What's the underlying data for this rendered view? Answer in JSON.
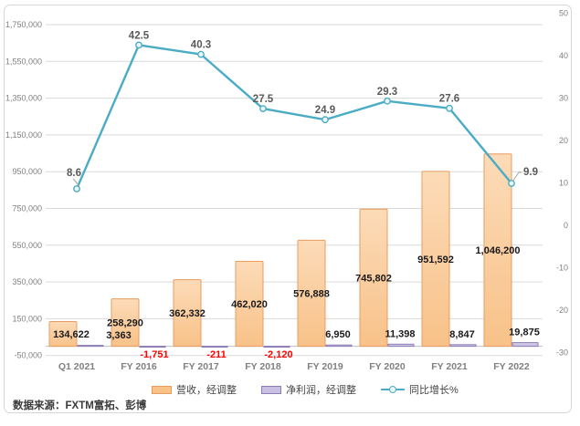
{
  "source_note": "数据来源：FXTM富拓、彭博",
  "legend": {
    "items": [
      {
        "label": "营收，经调整",
        "type": "bar"
      },
      {
        "label": "净利润，经调整",
        "type": "bar"
      },
      {
        "label": "同比增长%",
        "type": "line"
      }
    ]
  },
  "colors": {
    "revenue_fill_top": "#fcdbb8",
    "revenue_fill_bottom": "#f8c289",
    "revenue_border": "#e89c5d",
    "net_fill_top": "#d5cce8",
    "net_fill_bottom": "#c9bfe0",
    "net_border": "#8c7db8",
    "line": "#4bacc6",
    "marker_fill": "#eaf6fa",
    "label_dark": "#1a1a1a",
    "label_gray": "#595959",
    "label_negative": "#ff0000",
    "axis_text": "#808080",
    "gridline": "#dadada",
    "baseline": "#bfbfbf",
    "leader": "#a6a6a6"
  },
  "chart_data": {
    "type": "combo",
    "title": "",
    "categories": [
      "Q1 2021",
      "FY 2016",
      "FY 2017",
      "FY 2018",
      "FY 2019",
      "FY 2020",
      "FY 2021",
      "FY 2022"
    ],
    "series": [
      {
        "name": "营收，经调整",
        "type": "bar",
        "axis": "left",
        "values": [
          134622,
          258290,
          362332,
          462020,
          576888,
          745802,
          951592,
          1046200
        ],
        "labels": [
          "134,622",
          "258,290",
          "362,332",
          "462,020",
          "576,888",
          "745,802",
          "951,592",
          "1,046,200"
        ]
      },
      {
        "name": "净利润，经调整",
        "type": "bar",
        "axis": "left",
        "values": [
          3363,
          -1751,
          -211,
          -2120,
          6950,
          11398,
          8847,
          19875
        ],
        "labels": [
          "3,363",
          "-1,751",
          "-211",
          "-2,120",
          "6,950",
          "11,398",
          "8,847",
          "19,875"
        ]
      },
      {
        "name": "同比增长%",
        "type": "line",
        "axis": "right",
        "values": [
          8.6,
          42.5,
          40.3,
          27.5,
          24.9,
          29.3,
          27.6,
          9.9
        ],
        "labels": [
          "8.6",
          "42.5",
          "40.3",
          "27.5",
          "24.9",
          "29.3",
          "27.6",
          "9.9"
        ]
      }
    ],
    "left_axis": {
      "min": -50000,
      "max": 1750000,
      "step": 200000,
      "tick_labels": [
        "1,750,000",
        "1,550,000",
        "1,350,000",
        "1,150,000",
        "950,000",
        "750,000",
        "550,000",
        "350,000",
        "150,000",
        "-50,000"
      ]
    },
    "right_axis": {
      "min": -30,
      "max": 50,
      "step": 10,
      "tick_labels": [
        "50",
        "40",
        "30",
        "20",
        "10",
        "0",
        "-10",
        "-20",
        "-30"
      ]
    },
    "grid": true,
    "legend_position": "bottom"
  }
}
